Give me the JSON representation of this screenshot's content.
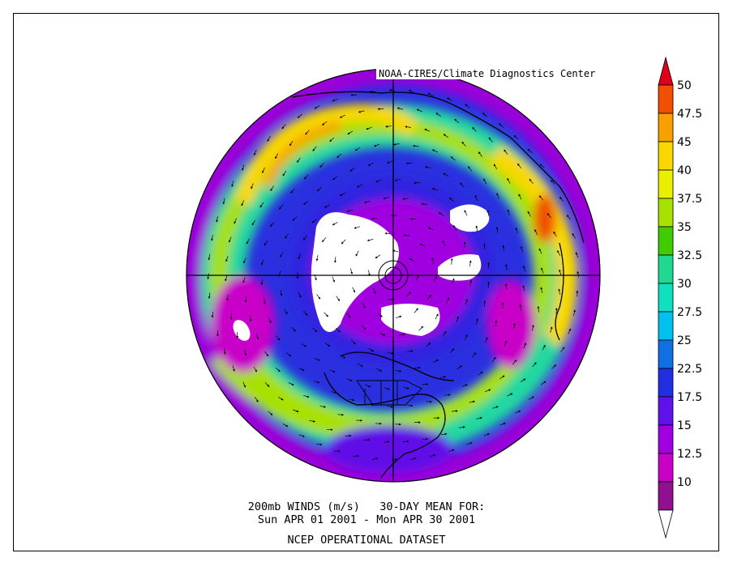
{
  "credit": "NOAA-CIRES/Climate Diagnostics Center",
  "caption": {
    "line1": "200mb WINDS (m/s)   30-DAY MEAN FOR:",
    "line2": "Sun APR 01 2001 - Mon APR 30 2001",
    "line3": "NCEP OPERATIONAL DATASET"
  },
  "colorbar": {
    "labels": [
      "50",
      "47.5",
      "45",
      "40",
      "37.5",
      "35",
      "32.5",
      "30",
      "27.5",
      "25",
      "22.5",
      "17.5",
      "15",
      "12.5",
      "10"
    ],
    "colors": [
      "#e0001a",
      "#f05000",
      "#f8a000",
      "#f8d800",
      "#e8f000",
      "#a8e000",
      "#40cc00",
      "#20d890",
      "#10e0c0",
      "#00c0f0",
      "#1070e0",
      "#2030e0",
      "#6010e8",
      "#a000e0",
      "#c800c8",
      "#901090",
      "#ffffff"
    ]
  },
  "map_fields": {
    "projection": "north-polar-stereographic",
    "variable": "200mb wind speed (m/s) with wind vectors"
  }
}
